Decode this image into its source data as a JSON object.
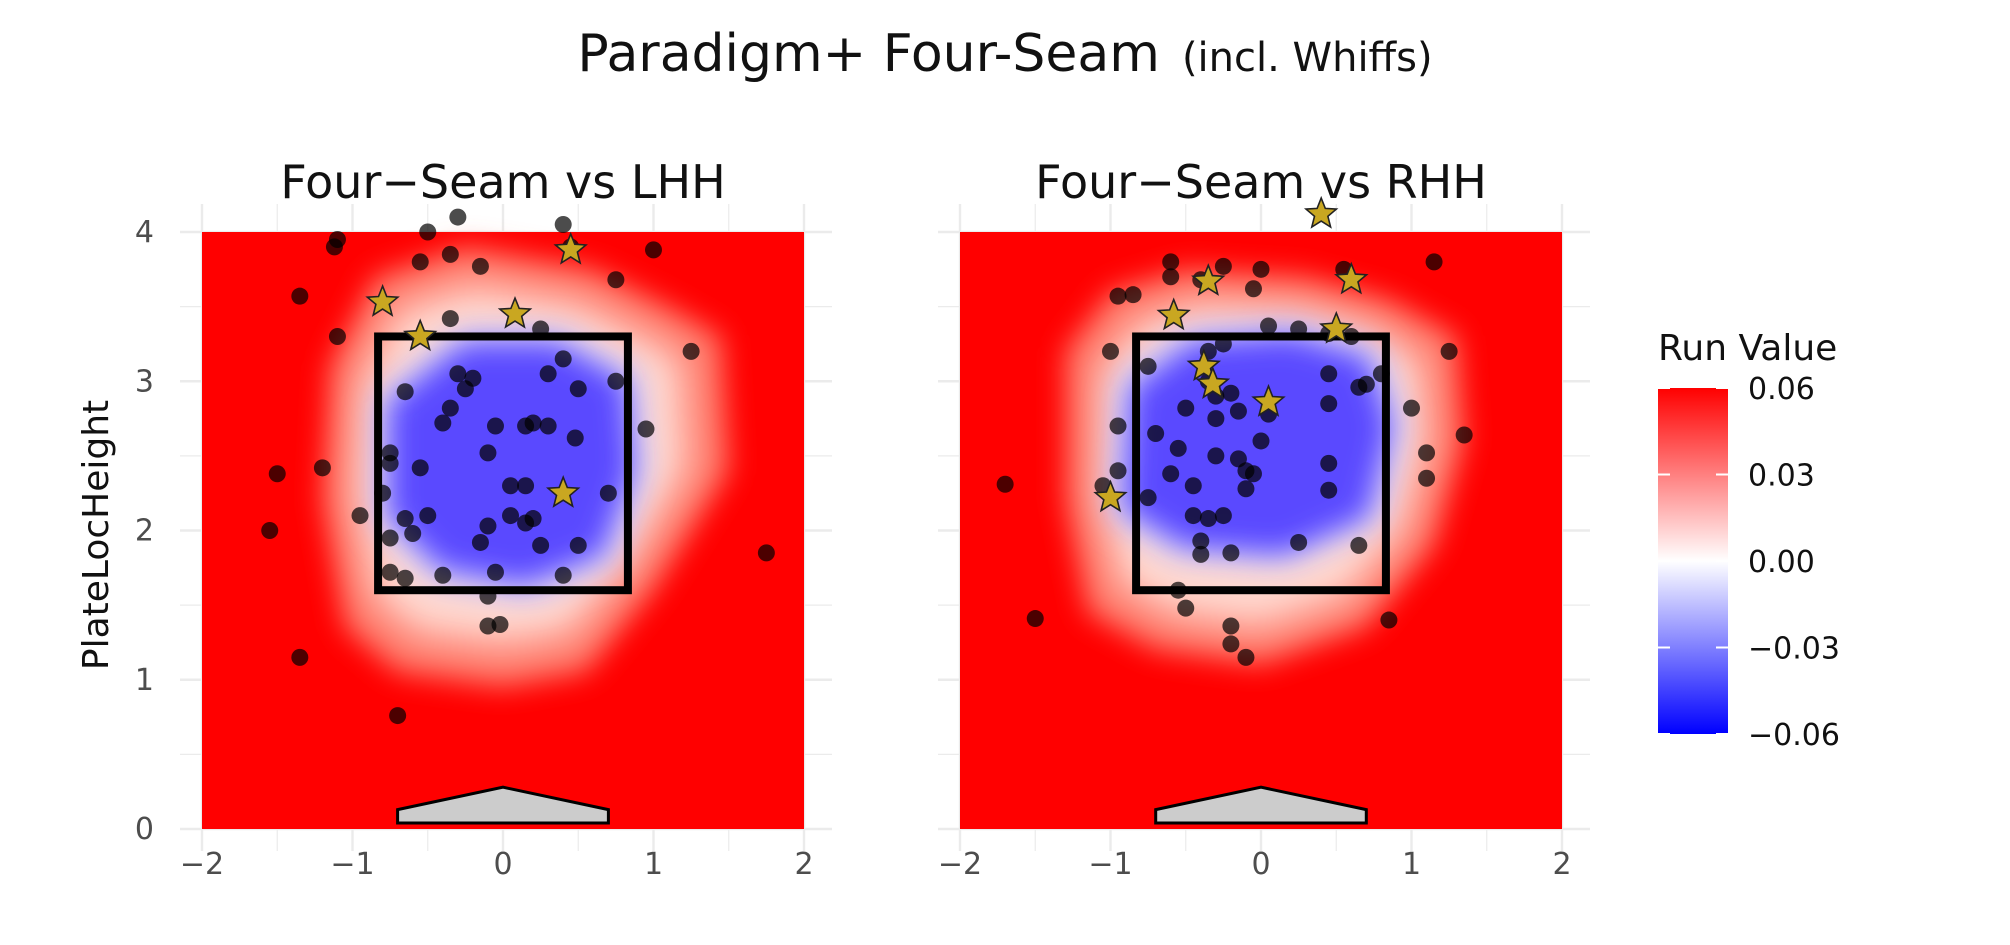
{
  "title": "Paradigm+ Four-Seam",
  "subtitle": "(incl. Whiffs)",
  "chart_data": {
    "type": "scatter",
    "ylabel": "PlateLocHeight",
    "xlabel": "",
    "xlim": [
      -2,
      2
    ],
    "ylim": [
      0,
      4
    ],
    "xticks": [
      "−2",
      "−1",
      "0",
      "1",
      "2"
    ],
    "yticks": [
      "0",
      "1",
      "2",
      "3",
      "4"
    ],
    "strike_zone": {
      "x": [
        -0.83,
        0.83
      ],
      "y": [
        1.6,
        3.3
      ]
    },
    "legend": {
      "title": "Run Value",
      "placement": "right",
      "ticks": [
        "0.06",
        "0.03",
        "0.00",
        "−0.03",
        "−0.06"
      ],
      "colors": {
        "high": "#ff0000",
        "mid": "#ffffff",
        "low": "#0000ff"
      }
    },
    "panels": [
      {
        "title": "Four−Seam vs LHH",
        "contour": {
          "outer": [
            [
              -1.15,
              3.1
            ],
            [
              -1.2,
              2.2
            ],
            [
              -1.05,
              1.35
            ],
            [
              -0.7,
              1.05
            ],
            [
              0.0,
              0.95
            ],
            [
              0.55,
              1.05
            ],
            [
              1.0,
              1.6
            ],
            [
              1.5,
              2.4
            ],
            [
              1.45,
              3.3
            ],
            [
              1.1,
              3.5
            ],
            [
              0.6,
              3.75
            ],
            [
              -0.25,
              3.9
            ],
            [
              -0.85,
              3.7
            ]
          ],
          "inner": [
            [
              -0.75,
              2.85
            ],
            [
              -0.75,
              2.1
            ],
            [
              -0.4,
              1.75
            ],
            [
              0.15,
              1.65
            ],
            [
              0.65,
              1.85
            ],
            [
              0.85,
              2.4
            ],
            [
              0.8,
              3.0
            ],
            [
              0.35,
              3.25
            ],
            [
              -0.25,
              3.25
            ]
          ]
        },
        "circles": [
          [
            -0.3,
            4.1
          ],
          [
            0.4,
            4.05
          ],
          [
            -0.5,
            4.0
          ],
          [
            -1.1,
            3.95
          ],
          [
            -1.12,
            3.9
          ],
          [
            -0.35,
            3.85
          ],
          [
            0.45,
            3.9
          ],
          [
            1.0,
            3.88
          ],
          [
            -0.55,
            3.8
          ],
          [
            -0.15,
            3.77
          ],
          [
            0.75,
            3.68
          ],
          [
            -1.35,
            3.57
          ],
          [
            -0.35,
            3.42
          ],
          [
            0.25,
            3.35
          ],
          [
            -1.1,
            3.3
          ],
          [
            1.25,
            3.2
          ],
          [
            0.4,
            3.15
          ],
          [
            -0.3,
            3.05
          ],
          [
            -0.2,
            3.02
          ],
          [
            0.3,
            3.05
          ],
          [
            0.75,
            3.0
          ],
          [
            -0.25,
            2.95
          ],
          [
            -0.65,
            2.93
          ],
          [
            0.5,
            2.95
          ],
          [
            -0.35,
            2.82
          ],
          [
            -0.4,
            2.72
          ],
          [
            0.2,
            2.72
          ],
          [
            0.15,
            2.7
          ],
          [
            -0.05,
            2.7
          ],
          [
            0.3,
            2.7
          ],
          [
            0.48,
            2.62
          ],
          [
            0.95,
            2.68
          ],
          [
            -0.75,
            2.52
          ],
          [
            -0.75,
            2.45
          ],
          [
            -0.1,
            2.52
          ],
          [
            -0.55,
            2.42
          ],
          [
            -1.2,
            2.42
          ],
          [
            -1.5,
            2.38
          ],
          [
            0.15,
            2.3
          ],
          [
            0.05,
            2.3
          ],
          [
            0.7,
            2.25
          ],
          [
            -0.8,
            2.25
          ],
          [
            -0.65,
            2.08
          ],
          [
            -0.5,
            2.1
          ],
          [
            -0.95,
            2.1
          ],
          [
            0.05,
            2.1
          ],
          [
            0.15,
            2.05
          ],
          [
            0.2,
            2.08
          ],
          [
            -0.1,
            2.03
          ],
          [
            -0.15,
            1.92
          ],
          [
            -0.75,
            1.95
          ],
          [
            0.25,
            1.9
          ],
          [
            0.5,
            1.9
          ],
          [
            -0.6,
            1.98
          ],
          [
            -1.55,
            2.0
          ],
          [
            -0.75,
            1.72
          ],
          [
            -0.4,
            1.7
          ],
          [
            -0.05,
            1.72
          ],
          [
            0.4,
            1.7
          ],
          [
            -0.65,
            1.68
          ],
          [
            -0.1,
            1.56
          ],
          [
            -0.1,
            1.36
          ],
          [
            -0.02,
            1.37
          ],
          [
            -1.35,
            1.15
          ],
          [
            1.75,
            1.85
          ],
          [
            -0.7,
            0.76
          ]
        ],
        "stars": [
          [
            0.45,
            3.88
          ],
          [
            -0.8,
            3.53
          ],
          [
            0.08,
            3.45
          ],
          [
            -0.55,
            3.3
          ],
          [
            0.4,
            2.25
          ]
        ]
      },
      {
        "title": "Four−Seam vs RHH",
        "contour": {
          "outer": [
            [
              -1.3,
              3.2
            ],
            [
              -1.3,
              2.2
            ],
            [
              -1.15,
              1.45
            ],
            [
              -0.7,
              1.2
            ],
            [
              0.0,
              1.1
            ],
            [
              0.7,
              1.35
            ],
            [
              1.15,
              1.9
            ],
            [
              1.35,
              2.6
            ],
            [
              1.3,
              3.3
            ],
            [
              0.85,
              3.55
            ],
            [
              0.3,
              3.7
            ],
            [
              -0.5,
              3.75
            ],
            [
              -1.0,
              3.6
            ]
          ],
          "inner": [
            [
              -0.85,
              2.95
            ],
            [
              -0.9,
              2.15
            ],
            [
              -0.5,
              1.9
            ],
            [
              0.15,
              1.85
            ],
            [
              0.7,
              2.1
            ],
            [
              0.85,
              2.7
            ],
            [
              0.7,
              3.15
            ],
            [
              0.2,
              3.3
            ],
            [
              -0.45,
              3.25
            ]
          ]
        },
        "circles": [
          [
            -0.6,
            3.8
          ],
          [
            -0.25,
            3.77
          ],
          [
            0.0,
            3.75
          ],
          [
            0.55,
            3.75
          ],
          [
            -0.85,
            3.58
          ],
          [
            -0.95,
            3.57
          ],
          [
            1.15,
            3.8
          ],
          [
            -0.6,
            3.7
          ],
          [
            -0.4,
            3.68
          ],
          [
            -0.05,
            3.62
          ],
          [
            0.05,
            3.37
          ],
          [
            0.25,
            3.35
          ],
          [
            0.45,
            3.32
          ],
          [
            0.6,
            3.3
          ],
          [
            -0.25,
            3.25
          ],
          [
            -0.35,
            3.2
          ],
          [
            1.25,
            3.2
          ],
          [
            -1.0,
            3.2
          ],
          [
            -0.75,
            3.1
          ],
          [
            -0.35,
            3.0
          ],
          [
            0.45,
            3.05
          ],
          [
            0.8,
            3.05
          ],
          [
            0.65,
            2.96
          ],
          [
            0.7,
            2.98
          ],
          [
            -0.3,
            2.9
          ],
          [
            -0.2,
            2.92
          ],
          [
            -0.5,
            2.82
          ],
          [
            -0.15,
            2.8
          ],
          [
            0.05,
            2.78
          ],
          [
            -0.3,
            2.75
          ],
          [
            0.45,
            2.85
          ],
          [
            1.0,
            2.82
          ],
          [
            -0.95,
            2.7
          ],
          [
            -0.7,
            2.65
          ],
          [
            0.0,
            2.6
          ],
          [
            -0.55,
            2.55
          ],
          [
            -0.3,
            2.5
          ],
          [
            -0.15,
            2.48
          ],
          [
            -0.1,
            2.4
          ],
          [
            0.45,
            2.45
          ],
          [
            1.1,
            2.52
          ],
          [
            1.35,
            2.64
          ],
          [
            -0.95,
            2.4
          ],
          [
            -0.6,
            2.38
          ],
          [
            -0.05,
            2.38
          ],
          [
            -0.45,
            2.3
          ],
          [
            -0.1,
            2.28
          ],
          [
            0.45,
            2.27
          ],
          [
            1.1,
            2.35
          ],
          [
            -1.05,
            2.3
          ],
          [
            -1.7,
            2.31
          ],
          [
            -0.75,
            2.22
          ],
          [
            -0.45,
            2.1
          ],
          [
            -0.25,
            2.1
          ],
          [
            -0.35,
            2.08
          ],
          [
            -0.4,
            1.93
          ],
          [
            -0.4,
            1.84
          ],
          [
            -0.2,
            1.85
          ],
          [
            0.25,
            1.92
          ],
          [
            0.65,
            1.9
          ],
          [
            -0.55,
            1.6
          ],
          [
            -0.5,
            1.48
          ],
          [
            -0.2,
            1.36
          ],
          [
            -0.2,
            1.24
          ],
          [
            -0.1,
            1.15
          ],
          [
            0.85,
            1.4
          ],
          [
            -1.5,
            1.41
          ]
        ],
        "stars": [
          [
            0.4,
            4.12
          ],
          [
            -0.35,
            3.67
          ],
          [
            0.6,
            3.68
          ],
          [
            -0.58,
            3.44
          ],
          [
            0.5,
            3.35
          ],
          [
            -0.38,
            3.1
          ],
          [
            -0.32,
            2.98
          ],
          [
            0.05,
            2.86
          ],
          [
            -1.0,
            2.22
          ]
        ]
      }
    ]
  }
}
